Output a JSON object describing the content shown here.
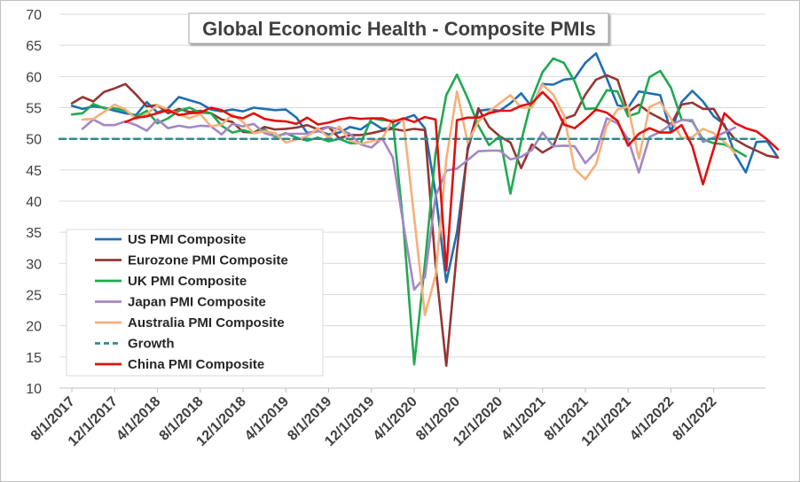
{
  "chart_data": {
    "type": "line",
    "title": "Global Economic Health - Composite PMIs",
    "xlabel": "",
    "ylabel": "",
    "ylim": [
      10,
      70
    ],
    "y_ticks": [
      "10",
      "15",
      "20",
      "25",
      "30",
      "35",
      "40",
      "45",
      "50",
      "55",
      "60",
      "65",
      "70"
    ],
    "x_ticks": [
      "8/1/2017",
      "12/1/2017",
      "4/1/2018",
      "8/1/2018",
      "12/1/2018",
      "4/1/2019",
      "8/1/2019",
      "12/1/2019",
      "4/1/2020",
      "8/1/2020",
      "12/1/2020",
      "4/1/2021",
      "8/1/2021",
      "12/1/2021",
      "4/1/2022",
      "8/1/2022"
    ],
    "x_start": "2017-07",
    "legend_position": "left",
    "grid": true,
    "series": [
      {
        "name": "US PMI Composite",
        "color": "#1f6fb2",
        "values": [
          55.3,
          54.8,
          55.2,
          55.0,
          54.5,
          54.1,
          53.8,
          55.9,
          54.2,
          54.9,
          56.7,
          56.2,
          55.7,
          54.7,
          54.4,
          54.7,
          54.4,
          55.0,
          54.8,
          54.6,
          54.7,
          53.4,
          50.9,
          51.3,
          50.7,
          51.0,
          51.9,
          51.5,
          52.7,
          51.6,
          51.8,
          53.2,
          53.8,
          51.7,
          41.3,
          27.0,
          35.0,
          48.1,
          54.5,
          54.7,
          54.5,
          55.7,
          57.3,
          55.1,
          58.8,
          58.7,
          59.5,
          59.7,
          62.2,
          63.7,
          59.7,
          55.4,
          55.0,
          57.6,
          57.3,
          57.0,
          51.1,
          55.9,
          57.7,
          56.0,
          53.6,
          52.3,
          47.5,
          44.6,
          49.5,
          49.6,
          47.0
        ]
      },
      {
        "name": "Eurozone PMI Composite",
        "color": "#943634",
        "values": [
          55.7,
          56.7,
          56.0,
          57.5,
          58.1,
          58.8,
          57.1,
          55.2,
          55.4,
          54.1,
          54.8,
          54.3,
          54.5,
          54.1,
          53.1,
          52.7,
          51.1,
          51.0,
          51.9,
          51.5,
          51.6,
          51.8,
          52.2,
          51.5,
          51.9,
          50.1,
          50.6,
          50.6,
          50.9,
          51.3,
          51.6,
          51.3,
          51.6,
          51.4,
          29.7,
          13.6,
          31.9,
          48.5,
          54.9,
          51.9,
          50.4,
          49.4,
          45.3,
          49.1,
          47.8,
          48.8,
          53.2,
          53.8,
          57.1,
          59.5,
          60.2,
          59.5,
          54.3,
          55.5,
          54.2,
          53.3,
          52.3,
          55.5,
          55.8,
          54.8,
          54.8,
          52.0,
          49.9,
          48.9,
          48.1,
          47.3,
          47.0
        ]
      },
      {
        "name": "UK PMI Composite",
        "color": "#1faa4f",
        "values": [
          53.9,
          54.1,
          55.6,
          54.9,
          54.9,
          54.5,
          53.5,
          54.5,
          52.5,
          53.3,
          54.5,
          55.0,
          54.2,
          54.1,
          52.1,
          51.0,
          51.4,
          50.9,
          51.5,
          50.3,
          50.9,
          50.2,
          49.7,
          50.2,
          49.6,
          50.0,
          49.3,
          49.3,
          53.3,
          53.0,
          52.9,
          36.0,
          13.8,
          30.0,
          47.7,
          57.0,
          60.3,
          56.5,
          52.1,
          49.0,
          50.4,
          41.2,
          49.6,
          56.4,
          60.7,
          62.9,
          62.2,
          59.2,
          54.8,
          54.9,
          57.8,
          57.6,
          53.6,
          54.2,
          59.9,
          60.9,
          58.2,
          53.1,
          52.8,
          49.9,
          49.3,
          49.1,
          48.2,
          47.2
        ]
      },
      {
        "name": "Japan PMI Composite",
        "color": "#a487c4",
        "values": [
          51.6,
          53.1,
          52.2,
          52.2,
          52.8,
          52.2,
          51.3,
          53.1,
          51.7,
          52.1,
          51.8,
          52.1,
          52.0,
          50.7,
          52.4,
          52.0,
          52.4,
          50.9,
          50.4,
          50.8,
          50.8,
          50.8,
          51.2,
          51.9,
          51.5,
          50.8,
          49.1,
          48.6,
          50.1,
          47.0,
          36.2,
          25.8,
          27.8,
          40.8,
          44.9,
          45.2,
          46.6,
          48.0,
          48.1,
          48.1,
          46.7,
          47.1,
          48.2,
          51.0,
          48.8,
          48.9,
          48.8,
          46.1,
          47.9,
          53.3,
          52.5,
          49.9,
          44.6,
          50.3,
          51.1,
          52.3,
          53.0,
          53.0,
          49.5,
          50.2,
          51.0,
          51.8
        ]
      },
      {
        "name": "Australia PMI Composite",
        "color": "#f6b07a",
        "values": [
          53.1,
          53.2,
          54.3,
          55.5,
          54.7,
          53.2,
          54.0,
          55.4,
          54.7,
          53.9,
          53.3,
          54.0,
          52.0,
          52.3,
          53.9,
          52.7,
          50.9,
          51.2,
          50.9,
          49.4,
          49.9,
          50.4,
          51.7,
          50.2,
          52.0,
          49.7,
          49.2,
          49.6,
          50.0,
          53.1,
          52.8,
          37.4,
          21.7,
          28.1,
          46.7,
          57.6,
          49.4,
          52.8,
          54.4,
          55.7,
          57.0,
          55.0,
          55.0,
          58.7,
          57.1,
          53.8,
          45.2,
          43.5,
          45.9,
          52.1,
          54.7,
          55.2,
          46.8,
          55.1,
          55.9,
          53.2,
          50.1,
          50.3,
          51.6,
          50.9,
          49.5,
          47.7
        ]
      },
      {
        "name": "Growth",
        "color": "#2e8b8b",
        "dashed": true,
        "values": [
          50,
          50
        ]
      },
      {
        "name": "China PMI Composite",
        "color": "#e01010",
        "values": [
          52.7,
          53.4,
          53.6,
          54.1,
          54.6,
          53.8,
          54.1,
          54.2,
          55.0,
          54.6,
          53.6,
          53.3,
          54.1,
          53.2,
          52.9,
          52.8,
          52.4,
          53.4,
          52.3,
          52.6,
          53.1,
          53.4,
          53.2,
          53.3,
          53.3,
          52.7,
          53.3,
          52.7,
          53.5,
          53.1,
          28.9,
          53.0,
          53.4,
          53.4,
          54.1,
          54.5,
          54.5,
          55.3,
          55.7,
          57.5,
          55.8,
          52.3,
          51.7,
          53.1,
          54.7,
          54.2,
          52.9,
          48.9,
          50.8,
          51.7,
          51.0,
          51.0,
          52.2,
          48.8,
          42.7,
          48.4,
          54.1,
          52.5,
          51.7,
          51.2,
          49.9,
          48.3
        ]
      }
    ]
  }
}
